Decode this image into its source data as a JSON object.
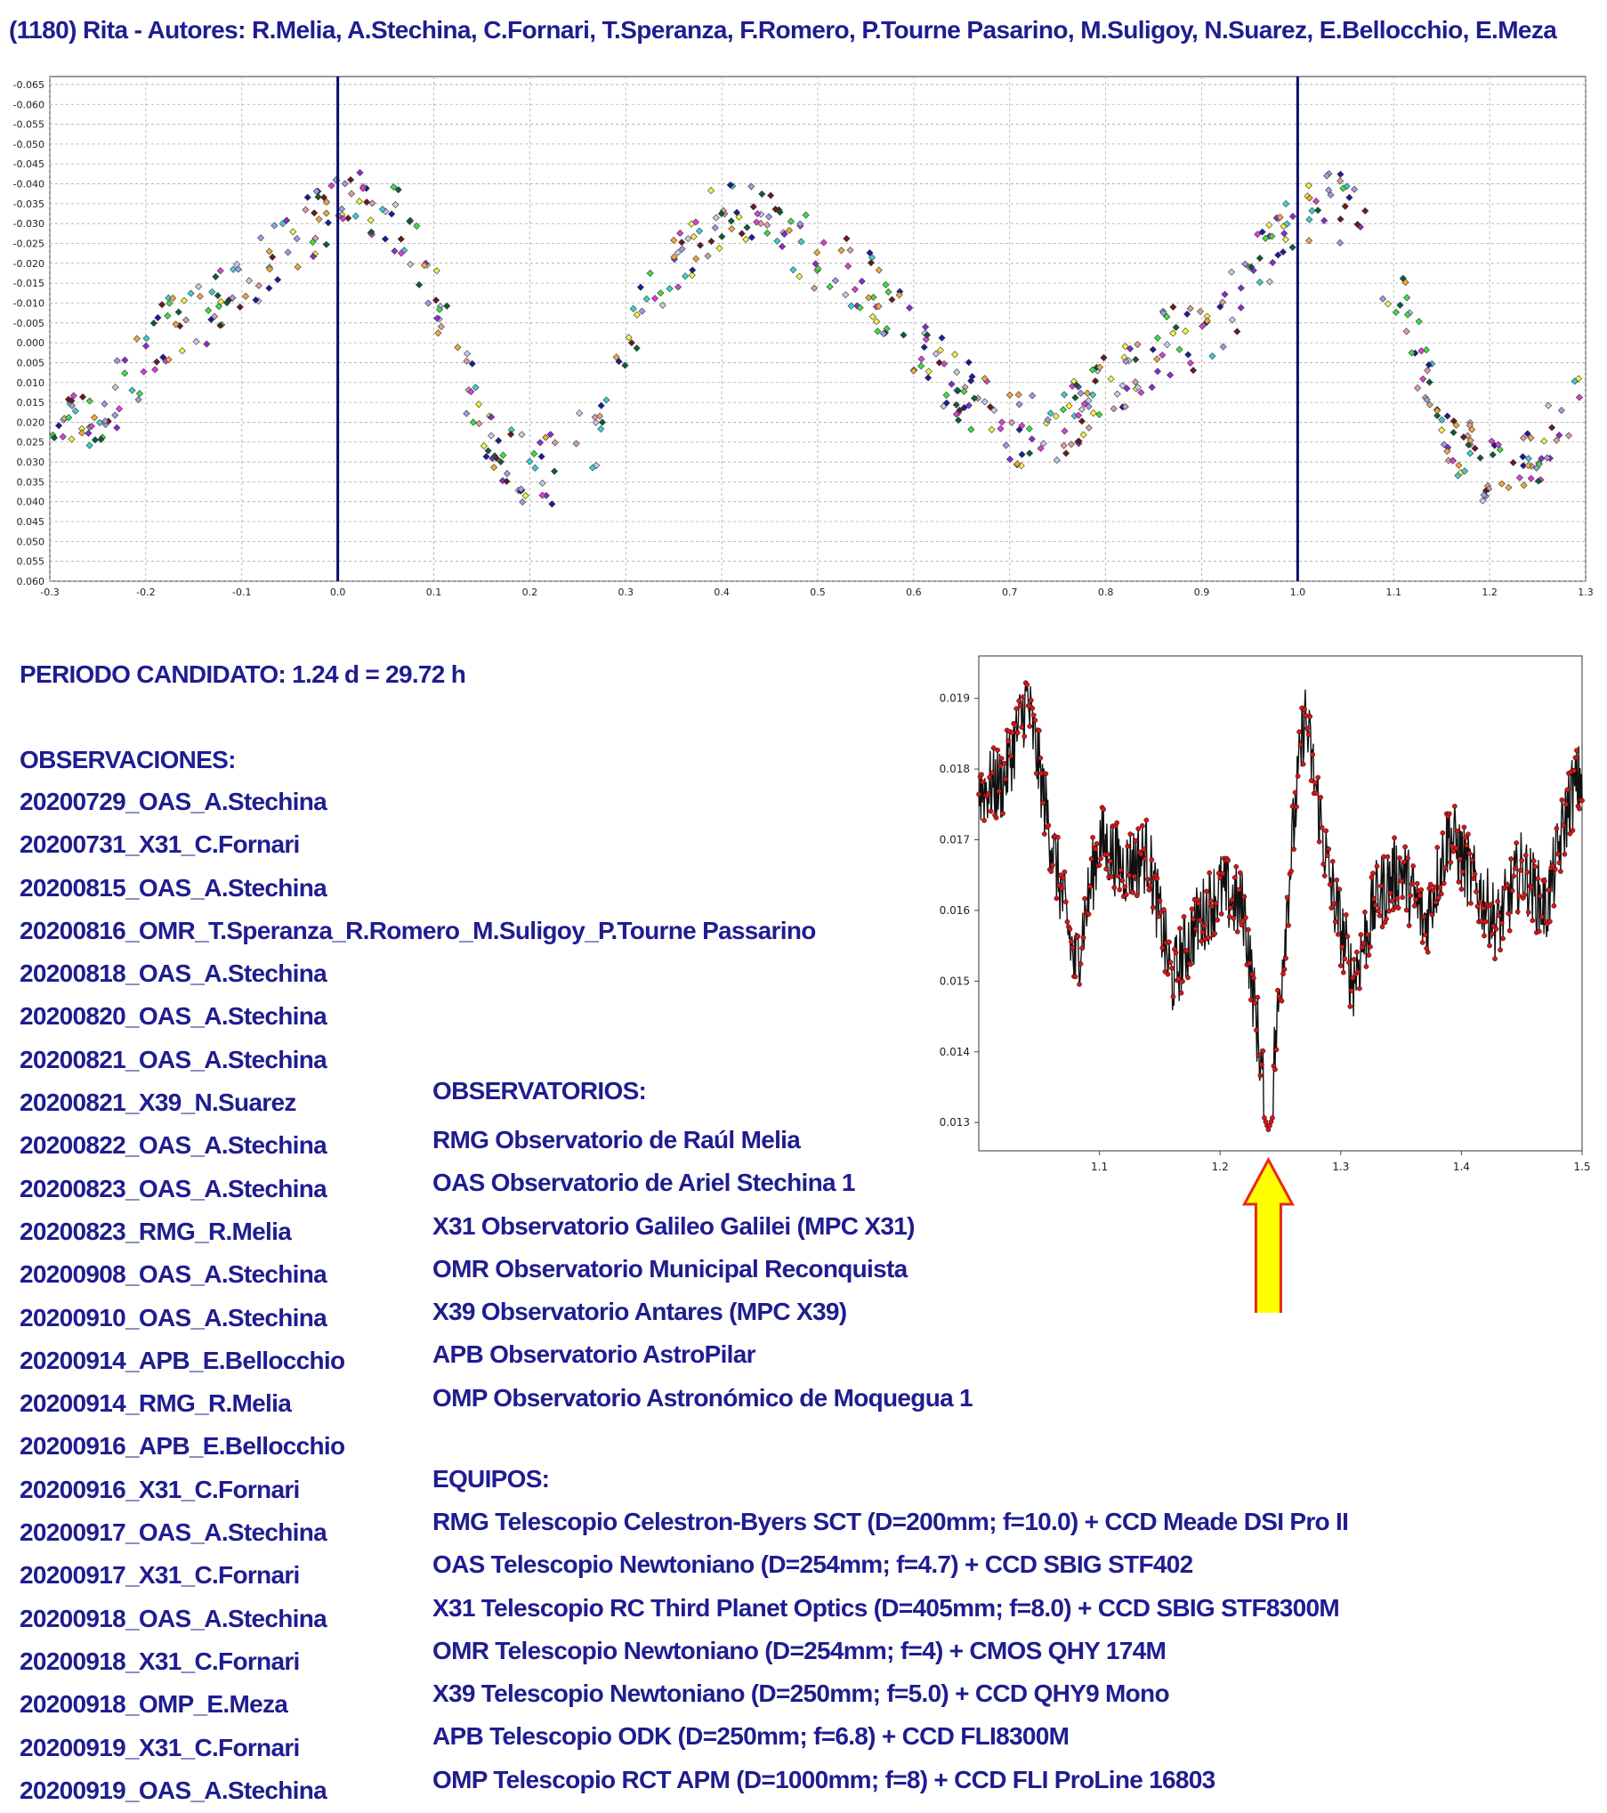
{
  "title": "(1180) Rita - Autores: R.Melia, A.Stechina, C.Fornari, T.Speranza, F.Romero, P.Tourne Pasarino, M.Suligoy, N.Suarez, E.Bellocchio, E.Meza",
  "period": "PERIODO CANDIDATO: 1.24 d = 29.72 h",
  "observations": {
    "header": "OBSERVACIONES:",
    "items": [
      "20200729_OAS_A.Stechina",
      "20200731_X31_C.Fornari",
      "20200815_OAS_A.Stechina",
      "20200816_OMR_T.Speranza_R.Romero_M.Suligoy_P.Tourne Passarino",
      "20200818_OAS_A.Stechina",
      "20200820_OAS_A.Stechina",
      "20200821_OAS_A.Stechina",
      "20200821_X39_N.Suarez",
      "20200822_OAS_A.Stechina",
      "20200823_OAS_A.Stechina",
      "20200823_RMG_R.Melia",
      "20200908_OAS_A.Stechina",
      "20200910_OAS_A.Stechina",
      "20200914_APB_E.Bellocchio",
      "20200914_RMG_R.Melia",
      "20200916_APB_E.Bellocchio",
      "20200916_X31_C.Fornari",
      "20200917_OAS_A.Stechina",
      "20200917_X31_C.Fornari",
      "20200918_OAS_A.Stechina",
      "20200918_X31_C.Fornari",
      "20200918_OMP_E.Meza",
      "20200919_X31_C.Fornari",
      "20200919_OAS_A.Stechina"
    ]
  },
  "observatories": {
    "header": "OBSERVATORIOS:",
    "items": [
      "RMG Observatorio de Raúl Melia",
      "OAS Observatorio de Ariel Stechina 1",
      "X31 Observatorio Galileo Galilei (MPC X31)",
      "OMR Observatorio Municipal Reconquista",
      "X39 Observatorio Antares (MPC X39)",
      "APB Observatorio AstroPilar",
      "OMP Observatorio Astronómico de Moquegua 1"
    ]
  },
  "equipment": {
    "header": "EQUIPOS:",
    "items": [
      "RMG Telescopio Celestron-Byers SCT (D=200mm; f=10.0) + CCD Meade DSI Pro II",
      "OAS Telescopio Newtoniano (D=254mm; f=4.7) + CCD SBIG STF402",
      "X31 Telescopio RC Third Planet Optics (D=405mm; f=8.0) + CCD SBIG STF8300M",
      "OMR Telescopio Newtoniano (D=254mm; f=4) + CMOS QHY 174M",
      "X39 Telescopio Newtoniano (D=250mm; f=5.0) + CCD QHY9 Mono",
      "APB Telescopio ODK (D=250mm; f=6.8) + CCD FLI8300M",
      "OMP Telescopio RCT APM (D=1000mm; f=8) + CCD FLI ProLine 16803"
    ]
  },
  "colors": {
    "text": "#1f1d8f",
    "marker_line": "#0b0b6e",
    "arrow_fill": "#ffff00",
    "arrow_stroke": "#e8291c",
    "pg_point": "#d11a1a",
    "series": [
      "#f5f542",
      "#c9c9ef",
      "#8e2ad8",
      "#3ad1d1",
      "#1b1b9c",
      "#d9a0a0",
      "#3ce23c",
      "#6b1a1a",
      "#e23cd8",
      "#0d5c3c",
      "#f2a83c",
      "#9d9de6"
    ]
  },
  "chart_data": [
    {
      "type": "scatter",
      "title": "",
      "xlabel": "",
      "ylabel": "",
      "xlim": [
        -0.3,
        1.3
      ],
      "ylim": [
        0.06,
        -0.067
      ],
      "y_inverted": true,
      "grid": true,
      "x_ticks": [
        "-0.3",
        "-0.2",
        "-0.1",
        "0.0",
        "0.1",
        "0.2",
        "0.3",
        "0.4",
        "0.5",
        "0.6",
        "0.7",
        "0.8",
        "0.9",
        "1.0",
        "1.1",
        "1.2",
        "1.3"
      ],
      "y_ticks": [
        "-0.065",
        "-0.060",
        "-0.055",
        "-0.050",
        "-0.045",
        "-0.040",
        "-0.035",
        "-0.030",
        "-0.025",
        "-0.020",
        "-0.015",
        "-0.010",
        "-0.005",
        "0.000",
        "0.005",
        "0.010",
        "0.015",
        "0.020",
        "0.025",
        "0.030",
        "0.035",
        "0.040",
        "0.045",
        "0.050",
        "0.055",
        "0.060"
      ],
      "vertical_lines": [
        0.0,
        1.0
      ],
      "curve": [
        [
          -0.3,
          0.024
        ],
        [
          -0.26,
          0.02
        ],
        [
          -0.22,
          0.01
        ],
        [
          -0.17,
          -0.005
        ],
        [
          -0.12,
          -0.01
        ],
        [
          -0.07,
          -0.02
        ],
        [
          -0.02,
          -0.03
        ],
        [
          0.03,
          -0.037
        ],
        [
          0.07,
          -0.028
        ],
        [
          0.11,
          -0.008
        ],
        [
          0.15,
          0.02
        ],
        [
          0.19,
          0.032
        ],
        [
          0.23,
          0.032
        ],
        [
          0.27,
          0.022
        ],
        [
          0.3,
          0.0
        ],
        [
          0.34,
          -0.018
        ],
        [
          0.39,
          -0.03
        ],
        [
          0.42,
          -0.032
        ],
        [
          0.46,
          -0.028
        ],
        [
          0.5,
          -0.022
        ],
        [
          0.55,
          -0.015
        ],
        [
          0.6,
          0.0
        ],
        [
          0.65,
          0.012
        ],
        [
          0.7,
          0.022
        ],
        [
          0.75,
          0.022
        ],
        [
          0.8,
          0.012
        ],
        [
          0.86,
          0.0
        ],
        [
          0.9,
          0.0
        ],
        [
          0.94,
          -0.012
        ],
        [
          0.98,
          -0.028
        ],
        [
          1.03,
          -0.037
        ],
        [
          1.07,
          -0.028
        ],
        [
          1.11,
          -0.008
        ],
        [
          1.15,
          0.02
        ],
        [
          1.19,
          0.032
        ],
        [
          1.23,
          0.032
        ],
        [
          1.27,
          0.022
        ],
        [
          1.3,
          0.005
        ]
      ],
      "scatter_spread": 0.009,
      "points_per_series": 55
    },
    {
      "type": "line",
      "title": "",
      "xlabel": "",
      "ylabel": "",
      "xlim": [
        1.0,
        1.5
      ],
      "ylim": [
        0.0126,
        0.0196
      ],
      "grid": false,
      "x_ticks": [
        "1.1",
        "1.2",
        "1.3",
        "1.4",
        "1.5"
      ],
      "y_ticks": [
        "0.013",
        "0.014",
        "0.015",
        "0.016",
        "0.017",
        "0.018",
        "0.019"
      ],
      "minimum_x": 1.24,
      "minimum_y": 0.0129,
      "profile": [
        [
          1.0,
          0.0177
        ],
        [
          1.02,
          0.0178
        ],
        [
          1.04,
          0.019
        ],
        [
          1.06,
          0.017
        ],
        [
          1.08,
          0.0152
        ],
        [
          1.1,
          0.017
        ],
        [
          1.12,
          0.0166
        ],
        [
          1.14,
          0.0168
        ],
        [
          1.16,
          0.015
        ],
        [
          1.18,
          0.0158
        ],
        [
          1.2,
          0.0163
        ],
        [
          1.22,
          0.016
        ],
        [
          1.24,
          0.0129
        ],
        [
          1.26,
          0.017
        ],
        [
          1.27,
          0.0188
        ],
        [
          1.29,
          0.0165
        ],
        [
          1.31,
          0.015
        ],
        [
          1.33,
          0.0162
        ],
        [
          1.35,
          0.0166
        ],
        [
          1.37,
          0.0158
        ],
        [
          1.39,
          0.0171
        ],
        [
          1.41,
          0.0164
        ],
        [
          1.43,
          0.0158
        ],
        [
          1.45,
          0.0166
        ],
        [
          1.47,
          0.016
        ],
        [
          1.49,
          0.0176
        ],
        [
          1.5,
          0.0179
        ]
      ]
    }
  ]
}
